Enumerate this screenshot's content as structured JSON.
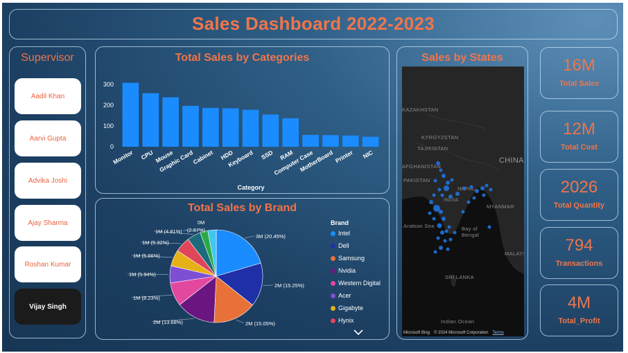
{
  "header": {
    "title": "Sales Dashboard 2022-2023"
  },
  "supervisor": {
    "title": "Supervisor",
    "items": [
      "Aadil Khan",
      "Aarvi Gupta",
      "Advika Joshi",
      "Ajay Sharma",
      "Roshan Kumar",
      "Vijay Singh"
    ],
    "selected": "Vijay Singh"
  },
  "categories_chart": {
    "title": "Total Sales by Categories",
    "chart_data": {
      "type": "bar",
      "categories": [
        "Monitor",
        "CPU",
        "Mouse",
        "Graphic Card",
        "Cabinet",
        "HDD",
        "Keyboard",
        "SSD",
        "RAM",
        "Computer Case",
        "MotherBoard",
        "Printer",
        "NIC"
      ],
      "values": [
        308,
        258,
        238,
        197,
        187,
        185,
        178,
        155,
        137,
        57,
        56,
        54,
        48
      ],
      "xlabel": "Category",
      "ylabel": "",
      "yticks": [
        "0",
        "100",
        "200",
        "300"
      ],
      "ylim": [
        0,
        320
      ],
      "color": "#1a8cff"
    }
  },
  "brand_chart": {
    "title": "Total Sales by Brand",
    "legend_title": "Brand",
    "chart_data": {
      "type": "pie",
      "slices": [
        {
          "name": "Intel",
          "percent": 20.45,
          "label": "3M (20.45%)",
          "color": "#1a8cff"
        },
        {
          "name": "Dell",
          "percent": 15.25,
          "label": "2M (15.25%)",
          "color": "#1f2fa8"
        },
        {
          "name": "Samsung",
          "percent": 15.05,
          "label": "2M (15.05%)",
          "color": "#e8713a"
        },
        {
          "name": "Nvidia",
          "percent": 13.68,
          "label": "2M (13.68%)",
          "color": "#6b1680"
        },
        {
          "name": "Western Digital",
          "percent": 8.23,
          "label": "1M (8.23%)",
          "color": "#e3489f"
        },
        {
          "name": "Acer",
          "percent": 5.94,
          "label": "1M (5.94%)",
          "color": "#7d4fd3"
        },
        {
          "name": "Gigabyte",
          "percent": 5.66,
          "label": "1M (5.66%)",
          "color": "#e6b017"
        },
        {
          "name": "Hynix",
          "percent": 5.32,
          "label": "1M (5.32%)",
          "color": "#e0455a"
        },
        {
          "name": "",
          "percent": 4.81,
          "label": "1M (4.81%)",
          "color": "#1c6b7a"
        },
        {
          "name": "",
          "percent": 2.67,
          "label": "0M (2.67%)",
          "color": "#2aa846"
        },
        {
          "name": "",
          "percent": 2.94,
          "label": "",
          "color": "#3fc7ef"
        }
      ],
      "legend": [
        "Intel",
        "Dell",
        "Samsung",
        "Nvidia",
        "Western Digital",
        "Acer",
        "Gigabyte",
        "Hynix"
      ]
    }
  },
  "states_map": {
    "title": "Sales by States",
    "labels": [
      "KAZAKHSTAN",
      "KYRGYZSTAN",
      "TAJIKISTAN",
      "AFGHANISTAN",
      "PAKISTAN",
      "CHINA",
      "NEPAL",
      "INDIA",
      "MYANMAR",
      "Arabian Sea",
      "Bay of Bengal",
      "SRI LANKA",
      "MALAYSIA",
      "Indian Ocean"
    ],
    "attribution": "© 2024 Microsoft Corporation",
    "terms": "Terms",
    "bing": "Microsoft Bing",
    "marker_color": "#1f6fd6"
  },
  "kpis": [
    {
      "value": "16M",
      "label": "Total Sales"
    },
    {
      "value": "12M",
      "label": "Total Cost"
    },
    {
      "value": "2026",
      "label": "Total Quantity"
    },
    {
      "value": "794",
      "label": "Transactions"
    },
    {
      "value": "4M",
      "label": "Total_Profit"
    }
  ]
}
